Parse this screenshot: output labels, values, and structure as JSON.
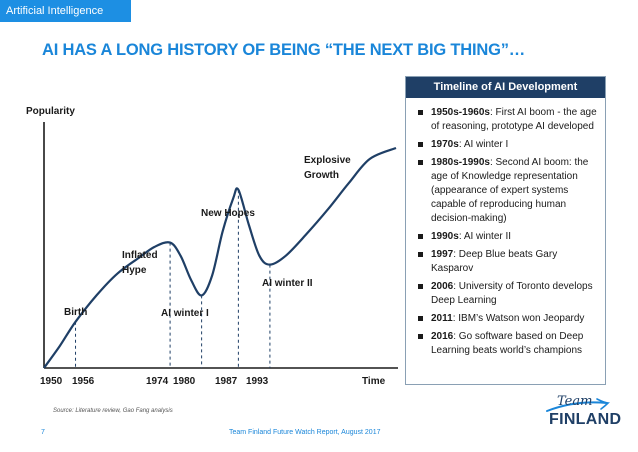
{
  "header": {
    "tag": "Artificial Intelligence",
    "title": "AI HAS A LONG HISTORY OF BEING “THE NEXT BIG THING”…"
  },
  "chart_data": {
    "type": "line",
    "ylabel": "Popularity",
    "xlabel": "Time",
    "xlim": [
      1950,
      2017
    ],
    "ylim": [
      0,
      10
    ],
    "x_ticks": [
      "1950",
      "1956",
      "1974",
      "1980",
      "1987",
      "1993"
    ],
    "series": [
      {
        "name": "AI popularity",
        "x": [
          1950,
          1953,
          1956,
          1960,
          1964,
          1968,
          1971,
          1974,
          1976,
          1978,
          1980,
          1982,
          1984,
          1986,
          1987,
          1989,
          1991,
          1993,
          1996,
          2000,
          2004,
          2008,
          2012,
          2017
        ],
        "y": [
          0,
          1.0,
          2.1,
          3.3,
          4.3,
          5.0,
          5.5,
          5.7,
          5.1,
          4.0,
          3.3,
          4.2,
          6.2,
          7.7,
          8.1,
          6.5,
          5.1,
          4.7,
          5.1,
          6.1,
          7.2,
          8.4,
          9.5,
          10.0
        ]
      }
    ],
    "markers": [
      {
        "year": 1956,
        "y": 2.1
      },
      {
        "year": 1974,
        "y": 5.7
      },
      {
        "year": 1980,
        "y": 3.3
      },
      {
        "year": 1987,
        "y": 8.1
      },
      {
        "year": 1993,
        "y": 4.7
      }
    ],
    "annotations": {
      "birth": "Birth",
      "inflated_hype_line1": "Inflated",
      "inflated_hype_line2": "Hype",
      "ai_winter_1": "AI winter I",
      "new_hopes": "New Hopes",
      "ai_winter_2": "AI winter II",
      "explosive_growth_line1": "Explosive",
      "explosive_growth_line2": "Growth"
    },
    "colors": {
      "line": "#1f3f66",
      "dashed": "#1f3f66",
      "axis": "#1a1a1a"
    }
  },
  "timeline": {
    "heading": "Timeline of AI Development",
    "items": [
      {
        "bold": "1950s-1960s",
        "text": ": First AI boom - the age of reasoning, prototype AI developed"
      },
      {
        "bold": "1970s",
        "text": ": AI winter I"
      },
      {
        "bold": "1980s-1990s",
        "text": ": Second AI boom: the age of Knowledge representation (appearance of expert systems capable of reproducing human decision-making)"
      },
      {
        "bold": "1990s",
        "text": ": AI winter II"
      },
      {
        "bold": "1997",
        "text": ": Deep Blue beats Gary Kasparov"
      },
      {
        "bold": "2006",
        "text": ": University of Toronto develops Deep Learning"
      },
      {
        "bold": "2011",
        "text": ": IBM’s Watson won Jeopardy"
      },
      {
        "bold": "2016",
        "text": ": Go software based on Deep Learning beats world’s champions"
      }
    ]
  },
  "footer": {
    "source": "Source: Literature review, Gao Fang analysis",
    "page_number": "7",
    "report": "Team Finland Future Watch Report, August 2017",
    "logo_top": "Team",
    "logo_bottom": "FINLAND"
  },
  "colors": {
    "accent": "#1a86d9",
    "tag_bg": "#1d8fe3",
    "navy": "#1f3f66"
  }
}
